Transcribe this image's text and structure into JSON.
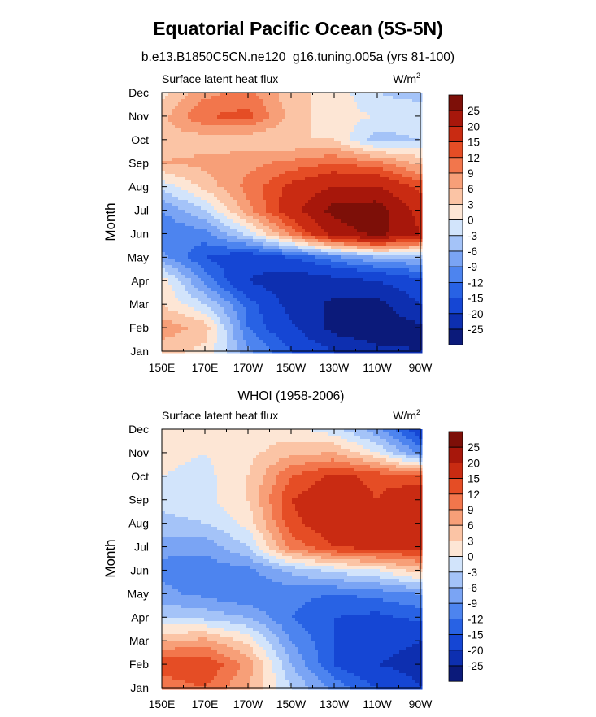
{
  "title": "Equatorial Pacific Ocean (5S-5N)",
  "chart_data": [
    {
      "type": "heatmap",
      "title": "b.e13.B1850C5CN.ne120_g16.tuning.005a (yrs 81-100)",
      "left_string": "Surface latent heat flux",
      "units": "W/m",
      "units_exponent": "2",
      "ylabel": "Month",
      "xlabel": "",
      "x": [
        "150E",
        "170E",
        "170W",
        "150W",
        "130W",
        "110W",
        "90W"
      ],
      "y": [
        "Jan",
        "Feb",
        "Mar",
        "Apr",
        "May",
        "Jun",
        "Jul",
        "Aug",
        "Sep",
        "Oct",
        "Nov",
        "Dec"
      ],
      "z": [
        [
          4,
          2,
          -8,
          -15,
          -20,
          -24,
          -25
        ],
        [
          8,
          5,
          -12,
          -19,
          -27,
          -28,
          -26
        ],
        [
          3,
          -3,
          -13,
          -22,
          -26,
          -27,
          -20
        ],
        [
          2,
          -10,
          -20,
          -24,
          -22,
          -20,
          -16
        ],
        [
          -8,
          -15,
          -18,
          -15,
          -10,
          -6,
          -6
        ],
        [
          -12,
          -10,
          -2,
          10,
          22,
          27,
          20
        ],
        [
          -9,
          -3,
          8,
          18,
          27,
          28,
          18
        ],
        [
          -2,
          4,
          10,
          16,
          20,
          20,
          14
        ],
        [
          6,
          7,
          8,
          10,
          12,
          10,
          5
        ],
        [
          5,
          4,
          4,
          3,
          3,
          -5,
          -3
        ],
        [
          5,
          12,
          13,
          5,
          1,
          0,
          0
        ],
        [
          2,
          8,
          10,
          4,
          2,
          -3,
          -5
        ]
      ]
    },
    {
      "type": "heatmap",
      "title": "WHOI (1958-2006)",
      "left_string": "Surface latent heat flux",
      "units": "W/m",
      "units_exponent": "2",
      "ylabel": "Month",
      "xlabel": "",
      "x": [
        "150E",
        "170E",
        "170W",
        "150W",
        "130W",
        "110W",
        "90W"
      ],
      "y": [
        "Jan",
        "Feb",
        "Mar",
        "Apr",
        "May",
        "Jun",
        "Jul",
        "Aug",
        "Sep",
        "Oct",
        "Nov",
        "Dec"
      ],
      "z": [
        [
          10,
          12,
          6,
          -3,
          -10,
          -15,
          -20
        ],
        [
          14,
          15,
          8,
          -6,
          -15,
          -20,
          -22
        ],
        [
          6,
          7,
          2,
          -9,
          -15,
          -18,
          -20
        ],
        [
          -3,
          -4,
          -6,
          -12,
          -15,
          -16,
          -14
        ],
        [
          -8,
          -10,
          -12,
          -11,
          -12,
          -11,
          -9
        ],
        [
          -10,
          -11,
          -10,
          -5,
          -2,
          0,
          5
        ],
        [
          -8,
          -8,
          -3,
          10,
          15,
          17,
          16
        ],
        [
          -4,
          -3,
          1,
          14,
          18,
          15,
          18
        ],
        [
          -2,
          -1,
          3,
          15,
          18,
          15,
          20
        ],
        [
          0,
          -1,
          3,
          12,
          16,
          14,
          12
        ],
        [
          1,
          0,
          2,
          5,
          6,
          0,
          -10
        ],
        [
          1,
          2,
          2,
          1,
          -2,
          -8,
          -18
        ]
      ]
    }
  ],
  "colorbar": {
    "labels": [
      "25",
      "20",
      "15",
      "12",
      "9",
      "6",
      "3",
      "0",
      "-3",
      "-6",
      "-9",
      "-12",
      "-15",
      "-20",
      "-25"
    ],
    "levels": [
      -25,
      -20,
      -15,
      -12,
      -9,
      -6,
      -3,
      0,
      3,
      6,
      9,
      12,
      15,
      20,
      25
    ],
    "colors": [
      "#0b1a7a",
      "#0d2fb0",
      "#1546d4",
      "#2862e4",
      "#4d84ef",
      "#7aa4f4",
      "#a4c3f8",
      "#d2e4fb",
      "#fde6d5",
      "#fbc4a5",
      "#f79f78",
      "#f2764c",
      "#e54d25",
      "#c92b12",
      "#a7170b",
      "#7d0f08"
    ]
  }
}
